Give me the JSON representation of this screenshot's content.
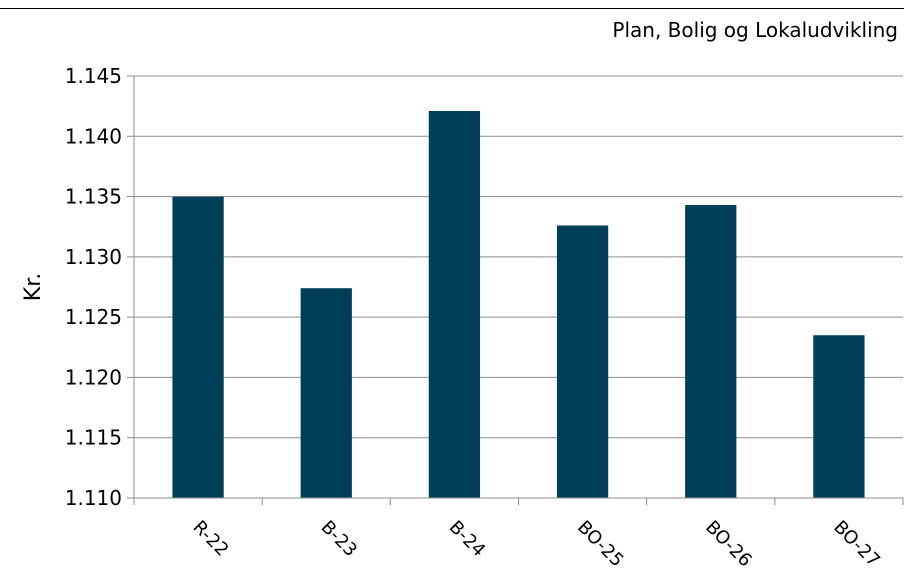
{
  "header": {
    "text": "Plan, Bolig og Lokaludvikling"
  },
  "chart_data": {
    "type": "bar",
    "title": "",
    "xlabel": "",
    "ylabel": "Kr.",
    "categories": [
      "R-22",
      "B-23",
      "B-24",
      "BO-25",
      "BO-26",
      "BO-27"
    ],
    "values": [
      1135.0,
      1127.4,
      1142.1,
      1132.6,
      1134.3,
      1123.5
    ],
    "ylim": [
      1110,
      1145
    ],
    "yticks": [
      1110,
      1115,
      1120,
      1125,
      1130,
      1135,
      1140,
      1145
    ],
    "ytick_labels": [
      "1.110",
      "1.115",
      "1.120",
      "1.125",
      "1.130",
      "1.135",
      "1.140",
      "1.145"
    ],
    "grid": true,
    "legend": "none",
    "bar_color": "#003F57"
  }
}
